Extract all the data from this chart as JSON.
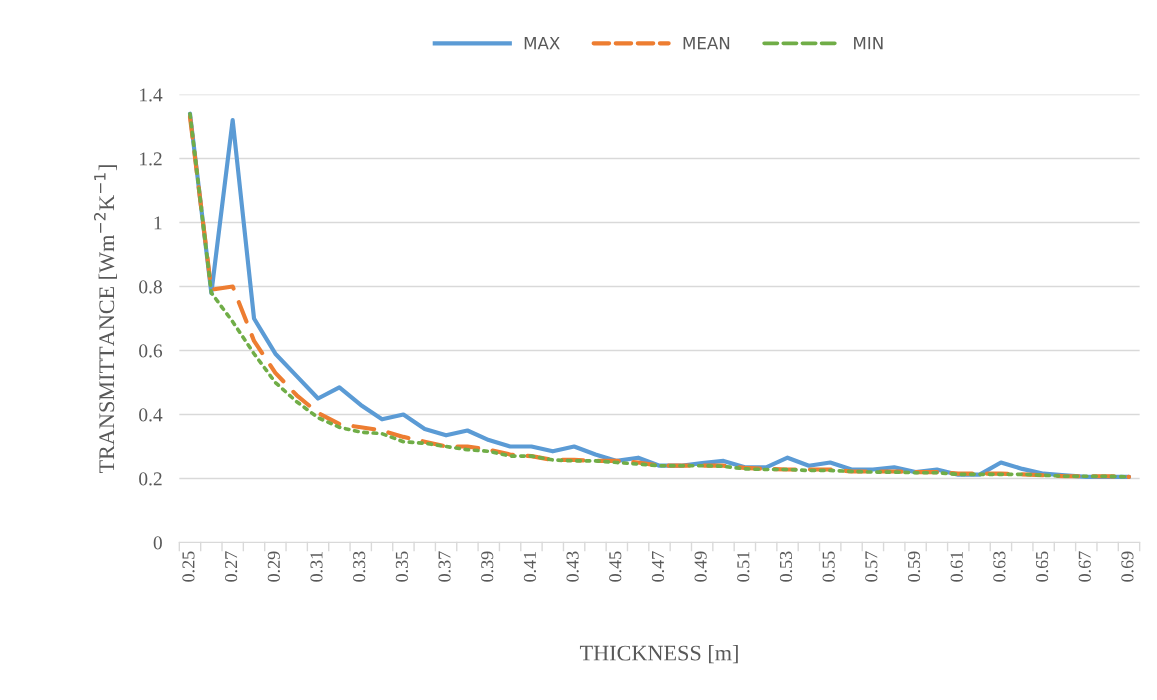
{
  "chart_data": {
    "type": "line",
    "xlabel": "THICKNESS [m]",
    "ylabel": "TRANSMITTANCE [Wm$^{−2}$K$^{−1}$]",
    "categories": [
      "0.25",
      null,
      "0.27",
      null,
      "0.29",
      null,
      "0.31",
      null,
      "0.33",
      null,
      "0.35",
      null,
      "0.37",
      null,
      "0.39",
      null,
      "0.41",
      null,
      "0.43",
      null,
      "0.45",
      null,
      "0.47",
      null,
      "0.49",
      null,
      "0.51",
      null,
      "0.53",
      null,
      "0.55",
      null,
      "0.57",
      null,
      "0.59",
      null,
      "0.61",
      null,
      "0.63",
      null,
      "0.65",
      null,
      "0.67",
      null,
      "0.69"
    ],
    "series": [
      {
        "name": "MAX",
        "color": "#5b9bd5",
        "line_style": "solid",
        "values": [
          1.34,
          0.78,
          1.32,
          0.7,
          0.59,
          0.52,
          0.45,
          0.485,
          0.43,
          0.385,
          0.4,
          0.355,
          0.335,
          0.35,
          0.32,
          0.3,
          0.3,
          0.285,
          0.3,
          0.275,
          0.255,
          0.265,
          0.24,
          0.24,
          0.248,
          0.255,
          0.235,
          0.235,
          0.265,
          0.24,
          0.25,
          0.228,
          0.228,
          0.235,
          0.22,
          0.228,
          0.212,
          0.212,
          0.25,
          0.23,
          0.215,
          0.21,
          0.205,
          0.205,
          0.205
        ]
      },
      {
        "name": "MEAN",
        "color": "#ed7d31",
        "line_style": "dashed",
        "values": [
          1.33,
          0.79,
          0.8,
          0.63,
          0.53,
          0.46,
          0.405,
          0.37,
          0.36,
          0.35,
          0.33,
          0.315,
          0.3,
          0.3,
          0.29,
          0.275,
          0.27,
          0.258,
          0.258,
          0.255,
          0.255,
          0.25,
          0.24,
          0.24,
          0.24,
          0.24,
          0.233,
          0.23,
          0.228,
          0.228,
          0.228,
          0.222,
          0.222,
          0.222,
          0.22,
          0.22,
          0.215,
          0.215,
          0.215,
          0.213,
          0.21,
          0.207,
          0.207,
          0.207,
          0.205
        ]
      },
      {
        "name": "MIN",
        "color": "#70ad47",
        "line_style": "dotted",
        "values": [
          1.34,
          0.78,
          0.69,
          0.59,
          0.5,
          0.44,
          0.39,
          0.36,
          0.345,
          0.34,
          0.315,
          0.31,
          0.3,
          0.29,
          0.285,
          0.27,
          0.27,
          0.258,
          0.255,
          0.255,
          0.25,
          0.245,
          0.24,
          0.24,
          0.24,
          0.238,
          0.23,
          0.228,
          0.228,
          0.225,
          0.225,
          0.222,
          0.22,
          0.22,
          0.218,
          0.218,
          0.213,
          0.213,
          0.213,
          0.213,
          0.21,
          0.207,
          0.207,
          0.207,
          0.205
        ]
      }
    ],
    "ylim": [
      0,
      1.4
    ],
    "yticks": [
      0,
      0.2,
      0.4,
      0.6,
      0.8,
      1,
      1.2,
      1.4
    ],
    "grid": "y",
    "legend": "top",
    "marker": "none"
  }
}
